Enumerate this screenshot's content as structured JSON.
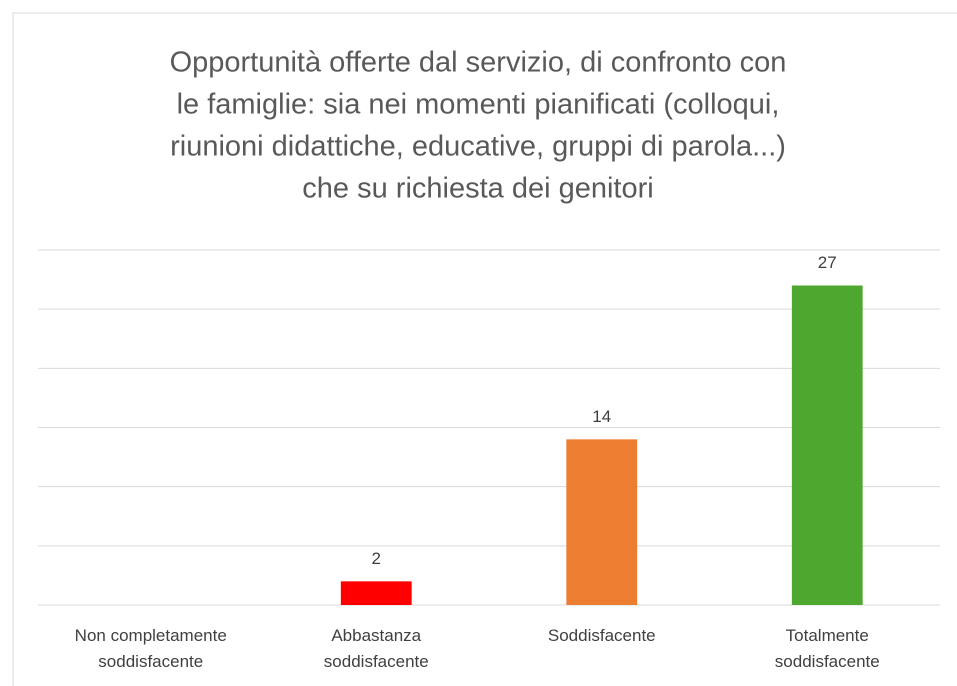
{
  "chart_data": {
    "type": "bar",
    "title": [
      "Opportunità offerte dal servizio, di confronto con",
      "le famiglie: sia nei momenti pianificati (colloqui,",
      "riunioni didattiche, educative, gruppi di parola...)",
      "che su richiesta dei genitori"
    ],
    "categories": [
      "Non completamente soddisfacente",
      "Abbastanza soddisfacente",
      "Soddisfacente",
      "Totalmente soddisfacente"
    ],
    "values": [
      null,
      2,
      14,
      27
    ],
    "colors": [
      "#4472c4",
      "#ff0000",
      "#ed7d31",
      "#4ea72e"
    ],
    "ylim": [
      0,
      30
    ],
    "yticks": [
      0,
      5,
      10,
      15,
      20,
      25,
      30
    ],
    "grid": true
  }
}
